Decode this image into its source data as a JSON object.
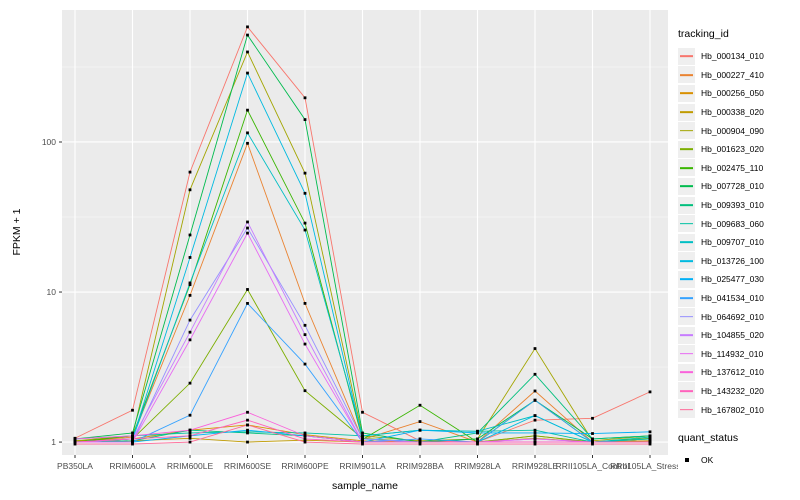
{
  "figure": {
    "background": "#FFFFFF",
    "panel_bg": "#EBEBEB",
    "grid_major_color": "#FFFFFF",
    "grid_minor_color": "#FFFFFF",
    "axis_text_color": "#4D4D4D",
    "tick_mark_color": "#333333",
    "marker_color": "#000000",
    "legend_key_bg": "#EFEFEF"
  },
  "axes": {
    "x_title": "sample_name",
    "y_title": "FPKM + 1"
  },
  "legend": {
    "tracking_title": "tracking_id",
    "quant_title": "quant_status",
    "quant_items": [
      {
        "label": "OK",
        "marker": "black-square"
      }
    ]
  },
  "chart_data": {
    "type": "line",
    "title": "",
    "xlabel": "sample_name",
    "ylabel": "FPKM + 1",
    "y_scale": "log10",
    "grid": true,
    "legend_position": "right",
    "y_ticks": [
      1,
      10,
      100
    ],
    "y_tick_labels": [
      "1",
      "10",
      "100"
    ],
    "y_minor_ticks": [
      3.162,
      31.62,
      316.2
    ],
    "ylim": [
      0.82,
      758
    ],
    "x_categories": [
      "PB350LA",
      "RRIM600LA",
      "RRIM600LE",
      "RRIM600SE",
      "RRIM600PE",
      "RRIM901LA",
      "RRIM928BA",
      "RRIM928LA",
      "RRIM928LE",
      "RRII105LA_Control",
      "RRII105LA_Stressed"
    ],
    "point_marker": {
      "shape": "square",
      "color": "#000000",
      "label": "OK"
    },
    "series": [
      {
        "name": "Hb_000134_010",
        "color": "#F8766D",
        "values": [
          1.06,
          1.63,
          63,
          585,
          197,
          1.58,
          1.02,
          1.0,
          1.4,
          1.44,
          2.16
        ]
      },
      {
        "name": "Hb_000227_410",
        "color": "#EA8331",
        "values": [
          1.0,
          1.08,
          9.5,
          98,
          8.4,
          1.04,
          1.37,
          1.0,
          2.19,
          1.0,
          1.02
        ]
      },
      {
        "name": "Hb_000256_050",
        "color": "#D89000",
        "values": [
          1.02,
          1.05,
          1.2,
          1.3,
          1.12,
          1.02,
          1.0,
          1.0,
          1.1,
          1.0,
          1.05
        ]
      },
      {
        "name": "Hb_000338_020",
        "color": "#C09B00",
        "values": [
          1.0,
          1.02,
          1.06,
          1.0,
          1.03,
          1.0,
          1.0,
          1.0,
          1.06,
          1.0,
          1.02
        ]
      },
      {
        "name": "Hb_000904_090",
        "color": "#A3A500",
        "values": [
          1.02,
          1.1,
          48,
          398,
          62,
          1.1,
          1.02,
          1.05,
          4.2,
          1.02,
          1.1
        ]
      },
      {
        "name": "Hb_001623_020",
        "color": "#7CAE00",
        "values": [
          1.0,
          1.05,
          2.47,
          10.4,
          2.2,
          1.06,
          1.0,
          1.0,
          1.1,
          1.0,
          1.06
        ]
      },
      {
        "name": "Hb_002475_110",
        "color": "#39B600",
        "values": [
          1.0,
          1.1,
          11.2,
          163,
          28.8,
          1.04,
          1.76,
          1.0,
          1.9,
          1.0,
          1.05
        ]
      },
      {
        "name": "Hb_007728_010",
        "color": "#00BB4E",
        "values": [
          1.05,
          1.15,
          24,
          516,
          141,
          1.15,
          1.0,
          1.05,
          1.9,
          1.05,
          1.1
        ]
      },
      {
        "name": "Hb_009393_010",
        "color": "#00BF7D",
        "values": [
          1.0,
          1.02,
          1.2,
          1.15,
          1.1,
          1.0,
          1.0,
          1.15,
          2.83,
          1.05,
          1.1
        ]
      },
      {
        "name": "Hb_009683_060",
        "color": "#00C1A3",
        "values": [
          1.05,
          1.1,
          1.15,
          1.17,
          1.15,
          1.1,
          1.2,
          1.18,
          1.2,
          1.0,
          1.08
        ]
      },
      {
        "name": "Hb_009707_010",
        "color": "#00BFC4",
        "values": [
          1.0,
          1.05,
          11.5,
          115,
          25.9,
          1.1,
          1.2,
          1.18,
          1.5,
          1.0,
          1.05
        ]
      },
      {
        "name": "Hb_013726_100",
        "color": "#00BAE0",
        "values": [
          1.0,
          1.05,
          17,
          288,
          45.5,
          1.05,
          1.0,
          1.0,
          1.5,
          1.0,
          1.0
        ]
      },
      {
        "name": "Hb_025477_030",
        "color": "#00B0F6",
        "values": [
          1.0,
          1.0,
          1.1,
          1.2,
          1.1,
          1.0,
          1.2,
          1.15,
          1.15,
          1.14,
          1.17
        ]
      },
      {
        "name": "Hb_041534_010",
        "color": "#35A2FF",
        "values": [
          1.0,
          1.0,
          1.51,
          8.4,
          3.31,
          1.0,
          1.05,
          1.0,
          1.9,
          1.0,
          1.0
        ]
      },
      {
        "name": "Hb_064692_010",
        "color": "#9590FF",
        "values": [
          1.0,
          1.0,
          6.5,
          26.7,
          6.0,
          1.05,
          1.0,
          1.0,
          1.05,
          1.0,
          1.0
        ]
      },
      {
        "name": "Hb_104855_020",
        "color": "#C77CFF",
        "values": [
          1.0,
          1.05,
          5.4,
          29.3,
          5.2,
          1.0,
          1.0,
          1.0,
          1.0,
          1.0,
          1.0
        ]
      },
      {
        "name": "Hb_114932_010",
        "color": "#E76BF3",
        "values": [
          1.0,
          1.0,
          4.8,
          24.7,
          4.5,
          1.0,
          1.0,
          1.0,
          1.05,
          1.0,
          1.0
        ]
      },
      {
        "name": "Hb_137612_010",
        "color": "#FA62DB",
        "values": [
          1.05,
          1.1,
          1.2,
          1.58,
          1.1,
          1.0,
          1.0,
          1.0,
          1.0,
          1.0,
          1.0
        ]
      },
      {
        "name": "Hb_143232_020",
        "color": "#FF62BC",
        "values": [
          1.0,
          1.05,
          1.1,
          1.4,
          1.05,
          1.0,
          1.0,
          1.0,
          1.0,
          1.0,
          1.0
        ]
      },
      {
        "name": "Hb_167802_010",
        "color": "#FF6A98",
        "values": [
          0.97,
          0.97,
          1.0,
          1.3,
          1.0,
          0.97,
          0.97,
          0.97,
          0.97,
          0.97,
          0.97
        ]
      }
    ]
  }
}
